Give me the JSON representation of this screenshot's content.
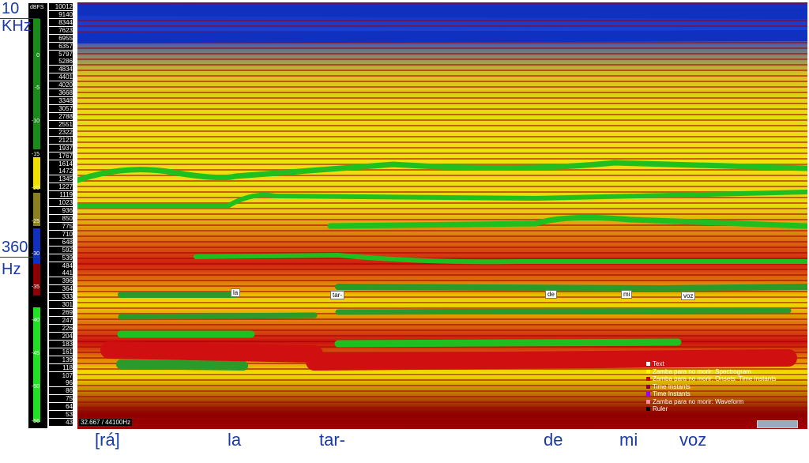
{
  "left_labels": [
    [
      "10",
      "KHz"
    ],
    [
      "360",
      "Hz"
    ]
  ],
  "colorbar": {
    "title": "dBFS",
    "labels": [
      "0",
      "-5",
      "-10",
      "-15",
      "-20",
      "-25",
      "-30",
      "-35",
      "-40",
      "-45",
      "-50",
      "-56"
    ]
  },
  "frequency_labels": [
    "10012",
    "9140",
    "8344",
    "7623",
    "6955",
    "6357",
    "5797",
    "5286",
    "4834",
    "4401",
    "4020",
    "3668",
    "3348",
    "3057",
    "2788",
    "2551",
    "2322",
    "2121",
    "1937",
    "1767",
    "1614",
    "1472",
    "1345",
    "1227",
    "1119",
    "1023",
    "936",
    "850",
    "775",
    "710",
    "648",
    "592",
    "539",
    "484",
    "441",
    "396",
    "364",
    "333",
    "301",
    "269",
    "247",
    "226",
    "204",
    "183",
    "161",
    "139",
    "118",
    "107",
    "96",
    "86",
    "75",
    "64",
    "53",
    "43"
  ],
  "annotations": [
    "la",
    "tar-",
    "de",
    "mi",
    "voz"
  ],
  "lyrics": [
    "[rá]",
    "la",
    "tar-",
    "de",
    "mi",
    "voz"
  ],
  "legend": [
    "Text",
    "Zamba para no morir: Spectrogram",
    "Zamba para no morir: Onsets: Time Instants",
    "Time Instants",
    "Time Instants",
    "Zamba para no morir: Waveform",
    "Ruler"
  ],
  "status": "32.667 / 44100Hz"
}
